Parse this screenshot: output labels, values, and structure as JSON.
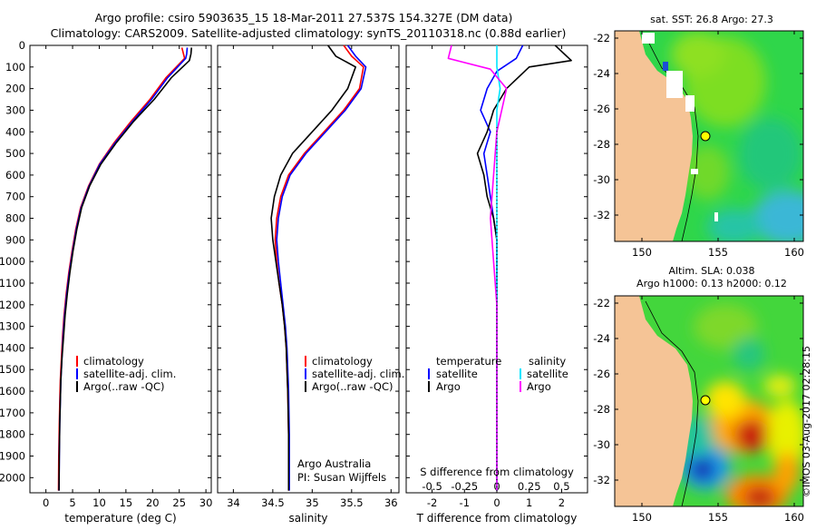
{
  "title_line1": "Argo profile: csiro 5903635_15 18-Mar-2011 27.537S 154.327E (DM data)",
  "title_line2": "Climatology: CARS2009. Satellite-adjusted climatology: synTS_20110318.nc (0.88d earlier)",
  "depth_ticks": [
    "0",
    "100",
    "200",
    "300",
    "400",
    "500",
    "600",
    "700",
    "800",
    "900",
    "1000",
    "1100",
    "1200",
    "1300",
    "1400",
    "1500",
    "1600",
    "1700",
    "1800",
    "1900",
    "2000"
  ],
  "chart_data": [
    {
      "type": "line",
      "id": "temperature",
      "xlabel": "temperature (deg C)",
      "xlim": [
        -3,
        31
      ],
      "ylim": [
        0,
        2070
      ],
      "xticks": [
        "0",
        "5",
        "10",
        "15",
        "20",
        "25",
        "30"
      ],
      "xtick_values": [
        0,
        5,
        10,
        15,
        20,
        25,
        30
      ],
      "legend": [
        "climatology",
        "satellite-adj. clim.",
        "Argo(..raw -QC)"
      ],
      "series": [
        {
          "name": "climatology",
          "color": "#ff0000",
          "x": [
            25.5,
            25.8,
            26.0,
            22.5,
            19.5,
            16.0,
            12.8,
            10.0,
            8.0,
            6.5,
            5.6,
            4.9,
            4.3,
            3.8,
            3.4,
            3.1,
            2.9,
            2.7,
            2.6,
            2.5,
            2.4,
            2.35
          ],
          "y": [
            10,
            40,
            60,
            150,
            250,
            350,
            450,
            550,
            650,
            750,
            850,
            950,
            1050,
            1150,
            1250,
            1350,
            1450,
            1550,
            1650,
            1750,
            1900,
            2060
          ]
        },
        {
          "name": "satellite-adj. clim.",
          "color": "#0000ff",
          "x": [
            26.5,
            26.4,
            26.2,
            22.8,
            19.8,
            16.3,
            13.0,
            10.1,
            8.1,
            6.6,
            5.7,
            5.0,
            4.4,
            3.9,
            3.5,
            3.2,
            3.0,
            2.8,
            2.7,
            2.6,
            2.5,
            2.45
          ],
          "y": [
            10,
            40,
            60,
            150,
            250,
            350,
            450,
            550,
            650,
            750,
            850,
            950,
            1050,
            1150,
            1250,
            1350,
            1450,
            1550,
            1650,
            1750,
            1900,
            2060
          ]
        },
        {
          "name": "Argo(..raw -QC)",
          "color": "#000000",
          "x": [
            27.3,
            27.2,
            26.9,
            23.5,
            20.3,
            16.5,
            13.2,
            10.3,
            8.2,
            6.7,
            5.8,
            5.1,
            4.5,
            4.0,
            3.6,
            3.3,
            3.0,
            2.8,
            2.7,
            2.6,
            2.5,
            2.45
          ],
          "y": [
            10,
            40,
            70,
            150,
            250,
            350,
            450,
            550,
            650,
            750,
            850,
            950,
            1050,
            1150,
            1250,
            1350,
            1450,
            1550,
            1650,
            1750,
            1900,
            2060
          ]
        }
      ]
    },
    {
      "type": "line",
      "id": "salinity",
      "xlabel": "salinity",
      "xlim": [
        33.8,
        36.1
      ],
      "ylim": [
        0,
        2070
      ],
      "xticks": [
        "34",
        "34.5",
        "35",
        "35.5",
        "36"
      ],
      "xtick_values": [
        34,
        34.5,
        35,
        35.5,
        36
      ],
      "legend": [
        "climatology",
        "satellite-adj. clim.",
        "Argo(..raw -QC)"
      ],
      "series": [
        {
          "name": "climatology",
          "color": "#ff0000",
          "x": [
            35.4,
            35.5,
            35.65,
            35.6,
            35.4,
            35.15,
            34.9,
            34.7,
            34.6,
            34.55,
            34.53,
            34.55,
            34.58,
            34.62,
            34.65,
            34.67,
            34.68,
            34.69,
            34.7,
            34.7
          ],
          "y": [
            0,
            50,
            100,
            200,
            300,
            400,
            500,
            600,
            700,
            800,
            900,
            1000,
            1100,
            1200,
            1300,
            1400,
            1500,
            1600,
            1800,
            2060
          ]
        },
        {
          "name": "satellite-adj. clim.",
          "color": "#0000ff",
          "x": [
            35.45,
            35.55,
            35.68,
            35.62,
            35.42,
            35.17,
            34.92,
            34.72,
            34.62,
            34.57,
            34.55,
            34.57,
            34.6,
            34.63,
            34.66,
            34.68,
            34.69,
            34.7,
            34.71,
            34.71
          ],
          "y": [
            0,
            50,
            100,
            200,
            300,
            400,
            500,
            600,
            700,
            800,
            900,
            1000,
            1100,
            1200,
            1300,
            1400,
            1500,
            1600,
            1800,
            2060
          ]
        },
        {
          "name": "Argo(..raw -QC)",
          "color": "#000000",
          "x": [
            35.2,
            35.3,
            35.55,
            35.45,
            35.25,
            35.0,
            34.75,
            34.6,
            34.52,
            34.48,
            34.5,
            34.54,
            34.58,
            34.62,
            34.65,
            34.67,
            34.68,
            34.69,
            34.7,
            34.7
          ],
          "y": [
            0,
            50,
            100,
            200,
            300,
            400,
            500,
            600,
            700,
            800,
            900,
            1000,
            1100,
            1200,
            1300,
            1400,
            1500,
            1600,
            1800,
            2060
          ]
        }
      ]
    },
    {
      "type": "line",
      "id": "differences",
      "xlabel": "T difference from climatology",
      "xlabel_top": "S difference from climatology",
      "xlim": [
        -2.8,
        2.8
      ],
      "ylim": [
        0,
        2070
      ],
      "xticks": [
        "-2",
        "-1",
        "0",
        "1",
        "2"
      ],
      "xtick_values": [
        -2,
        -1,
        0,
        1,
        2
      ],
      "sticks": [
        "-0.5",
        "-0.25",
        "0",
        "0.25",
        "0.5"
      ],
      "stick_values": [
        -2,
        -1,
        0,
        1,
        2
      ],
      "legend_headers": [
        "temperature",
        "salinity"
      ],
      "legend_left": [
        "satellite",
        "Argo"
      ],
      "legend_right": [
        "satellite",
        "Argo"
      ],
      "series": [
        {
          "name": "T satellite",
          "color": "#0000ff",
          "x": [
            0.8,
            0.6,
            0.0,
            -0.3,
            -0.5,
            -0.2,
            -0.4,
            -0.3,
            -0.2,
            -0.1,
            0.0,
            0.0,
            0.0,
            0.0
          ],
          "y": [
            0,
            60,
            120,
            200,
            300,
            400,
            500,
            600,
            700,
            800,
            900,
            1000,
            1500,
            2060
          ]
        },
        {
          "name": "T Argo",
          "color": "#000000",
          "x": [
            1.8,
            2.3,
            1.0,
            0.3,
            -0.1,
            -0.3,
            -0.6,
            -0.4,
            -0.3,
            -0.1,
            0.0,
            0.0,
            0.0,
            0.0
          ],
          "y": [
            0,
            70,
            100,
            200,
            300,
            400,
            500,
            600,
            700,
            800,
            900,
            1000,
            1500,
            2060
          ]
        },
        {
          "name": "S satellite",
          "color": "#00e5ff",
          "x": [
            0.0,
            0.0,
            0.1,
            0.0,
            0.0,
            0.0,
            0.0,
            0.0,
            0.0,
            0.0,
            0.0
          ],
          "y": [
            0,
            100,
            200,
            300,
            400,
            600,
            800,
            1000,
            1200,
            1600,
            2060
          ]
        },
        {
          "name": "S Argo",
          "color": "#ff00ff",
          "x": [
            -1.4,
            -1.5,
            -0.2,
            0.3,
            0.0,
            -0.1,
            -0.2,
            -0.1,
            0.0,
            0.0,
            0.0
          ],
          "y": [
            0,
            60,
            110,
            200,
            400,
            600,
            800,
            1000,
            1200,
            1600,
            2060
          ]
        }
      ]
    }
  ],
  "map_top": {
    "title": "sat. SST: 26.8 Argo: 27.3",
    "yticks": [
      "-22",
      "-24",
      "-26",
      "-28",
      "-30",
      "-32"
    ],
    "xticks": [
      "150",
      "155",
      "160"
    ]
  },
  "map_bottom": {
    "title_line1": "Altim. SLA: 0.038",
    "title_line2": "Argo h1000: 0.13 h2000: 0.12",
    "yticks": [
      "-22",
      "-24",
      "-26",
      "-28",
      "-30",
      "-32"
    ],
    "xticks": [
      "150",
      "155",
      "160"
    ]
  },
  "credits": {
    "agency": "Argo Australia",
    "pi": "PI: Susan Wijffels",
    "watermark": "©IMOS 03-Aug-2017 02:28:15"
  }
}
